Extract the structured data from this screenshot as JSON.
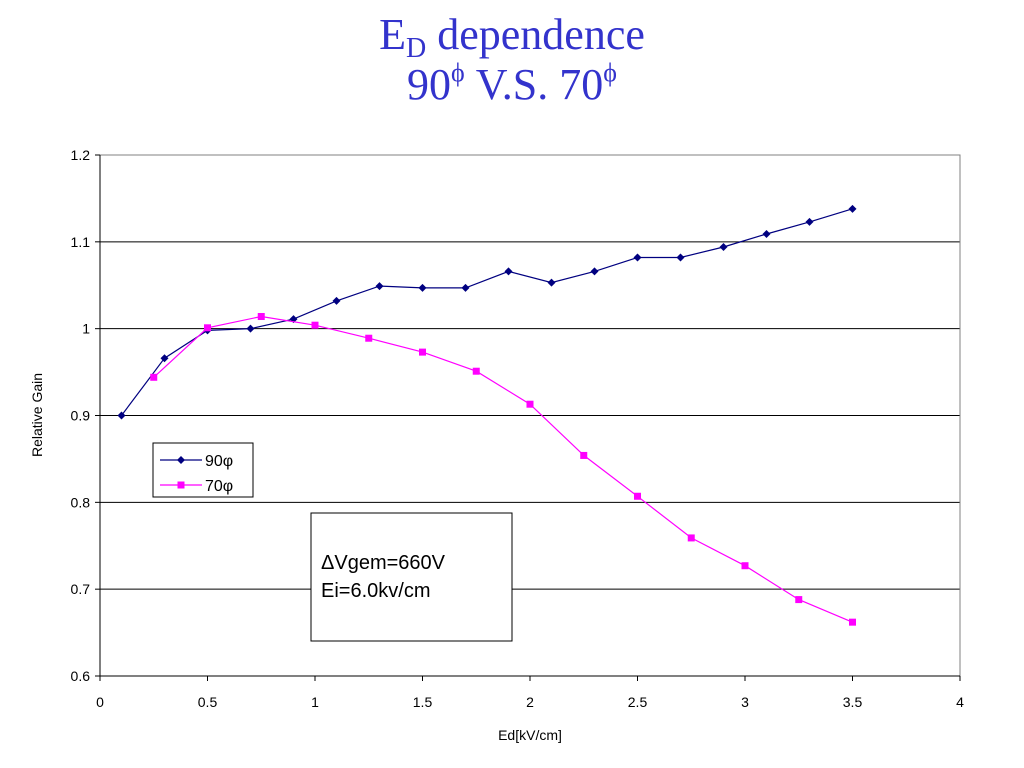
{
  "title": {
    "line1_main": "E",
    "line1_sub": "D",
    "line1_rest": " dependence",
    "line2_a": "90",
    "line2_a_sup": "ϕ",
    "line2_mid": " V.S. 70",
    "line2_b_sup": "ϕ"
  },
  "chart_data": {
    "type": "line",
    "xlabel": "Ed[kV/cm]",
    "ylabel": "Relative Gain",
    "xlim": [
      0,
      4
    ],
    "ylim": [
      0.6,
      1.2
    ],
    "x_ticks": [
      "0",
      "0.5",
      "1",
      "1.5",
      "2",
      "2.5",
      "3",
      "3.5",
      "4"
    ],
    "y_ticks": [
      "0.6",
      "0.7",
      "0.8",
      "0.9",
      "1",
      "1.1",
      "1.2"
    ],
    "grid": "horizontal",
    "legend_position": "left-middle",
    "series": [
      {
        "name": "90φ",
        "color": "#000080",
        "marker": "diamond",
        "x": [
          0.1,
          0.3,
          0.5,
          0.7,
          0.9,
          1.1,
          1.3,
          1.5,
          1.7,
          1.9,
          2.1,
          2.3,
          2.5,
          2.7,
          2.9,
          3.1,
          3.3,
          3.5
        ],
        "y": [
          0.9,
          0.966,
          0.998,
          1.0,
          1.011,
          1.032,
          1.049,
          1.047,
          1.047,
          1.066,
          1.053,
          1.066,
          1.082,
          1.082,
          1.094,
          1.109,
          1.123,
          1.138
        ]
      },
      {
        "name": "70φ",
        "color": "#ff00ff",
        "marker": "square",
        "x": [
          0.25,
          0.5,
          0.75,
          1.0,
          1.25,
          1.5,
          1.75,
          2.0,
          2.25,
          2.5,
          2.75,
          3.0,
          3.25,
          3.5
        ],
        "y": [
          0.944,
          1.001,
          1.014,
          1.004,
          0.989,
          0.973,
          0.951,
          0.913,
          0.854,
          0.807,
          0.759,
          0.727,
          0.688,
          0.662
        ]
      }
    ],
    "annotation": {
      "line1": "ΔVgem=660V",
      "line2": "Ei=6.0kv/cm"
    }
  }
}
